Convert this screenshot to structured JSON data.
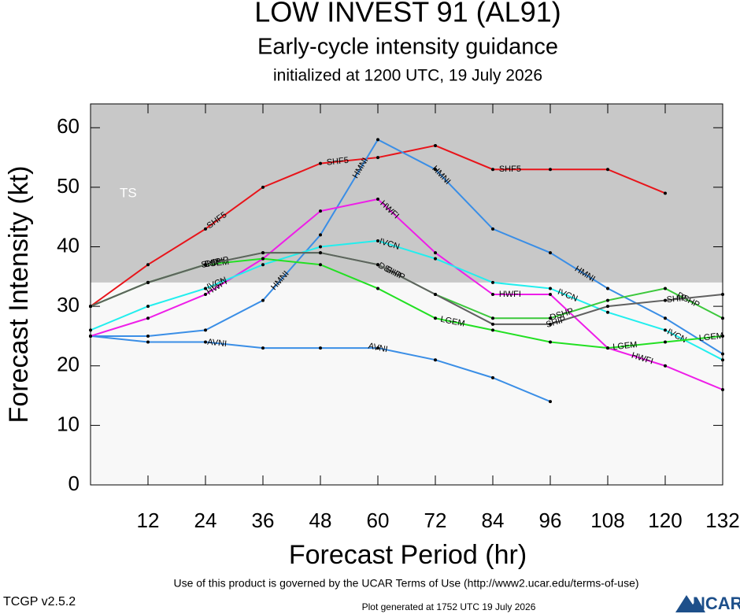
{
  "chart_data": {
    "type": "line",
    "title": "LOW INVEST 91 (AL91)",
    "subtitle": "Early-cycle intensity guidance",
    "initialized": "initialized at 1200 UTC, 19 July 2026",
    "x_label": "Forecast Period (hr)",
    "y_label": "Forecast Intensity (kt)",
    "x": [
      0,
      12,
      24,
      36,
      48,
      60,
      72,
      84,
      96,
      108,
      120,
      132
    ],
    "xlim": [
      0,
      132
    ],
    "xticks": [
      12,
      24,
      36,
      48,
      60,
      72,
      84,
      96,
      108,
      120,
      132
    ],
    "ylim": [
      0,
      64
    ],
    "yticks": [
      0,
      10,
      20,
      30,
      40,
      50,
      60
    ],
    "band": {
      "label": "TS",
      "min": 34,
      "color": "#c8c8c8"
    },
    "background": "#f8f8f8",
    "series": [
      {
        "name": "SHF5",
        "color": "#e8141a",
        "values": [
          30,
          37,
          43,
          50,
          54,
          55,
          57,
          53,
          53,
          53,
          49,
          null
        ]
      },
      {
        "name": "HMNI",
        "color": "#3a8ee6",
        "values": [
          25,
          25,
          26,
          31,
          42,
          58,
          53,
          43,
          39,
          33,
          28,
          22
        ]
      },
      {
        "name": "AVNI",
        "color": "#3a8ee6",
        "values": [
          25,
          24,
          24,
          23,
          23,
          23,
          21,
          18,
          14,
          null,
          null,
          null
        ]
      },
      {
        "name": "HWFI",
        "color": "#ee1ee8",
        "values": [
          25,
          28,
          32,
          38,
          46,
          48,
          39,
          32,
          32,
          23,
          20,
          16
        ]
      },
      {
        "name": "IVCN",
        "color": "#22eeee",
        "values": [
          26,
          30,
          33,
          37,
          40,
          41,
          38,
          34,
          33,
          29,
          26,
          21
        ]
      },
      {
        "name": "DSHP",
        "color": "#3cc83c",
        "values": [
          30,
          34,
          37,
          39,
          39,
          37,
          32,
          28,
          28,
          31,
          33,
          28
        ]
      },
      {
        "name": "LGEM",
        "color": "#22e022",
        "values": [
          30,
          34,
          37,
          38,
          37,
          33,
          28,
          26,
          24,
          23,
          24,
          25
        ]
      },
      {
        "name": "SHIP",
        "color": "#606060",
        "values": [
          30,
          34,
          37,
          39,
          39,
          37,
          32,
          27,
          27,
          30,
          31,
          32
        ]
      }
    ]
  },
  "footer": {
    "terms": "Use of this product is governed by the UCAR Terms of Use (http://www2.ucar.edu/terms-of-use)",
    "version": "TCGP v2.5.2",
    "generated": "Plot generated at 1752 UTC   19 July 2026",
    "logo": "NCAR"
  }
}
